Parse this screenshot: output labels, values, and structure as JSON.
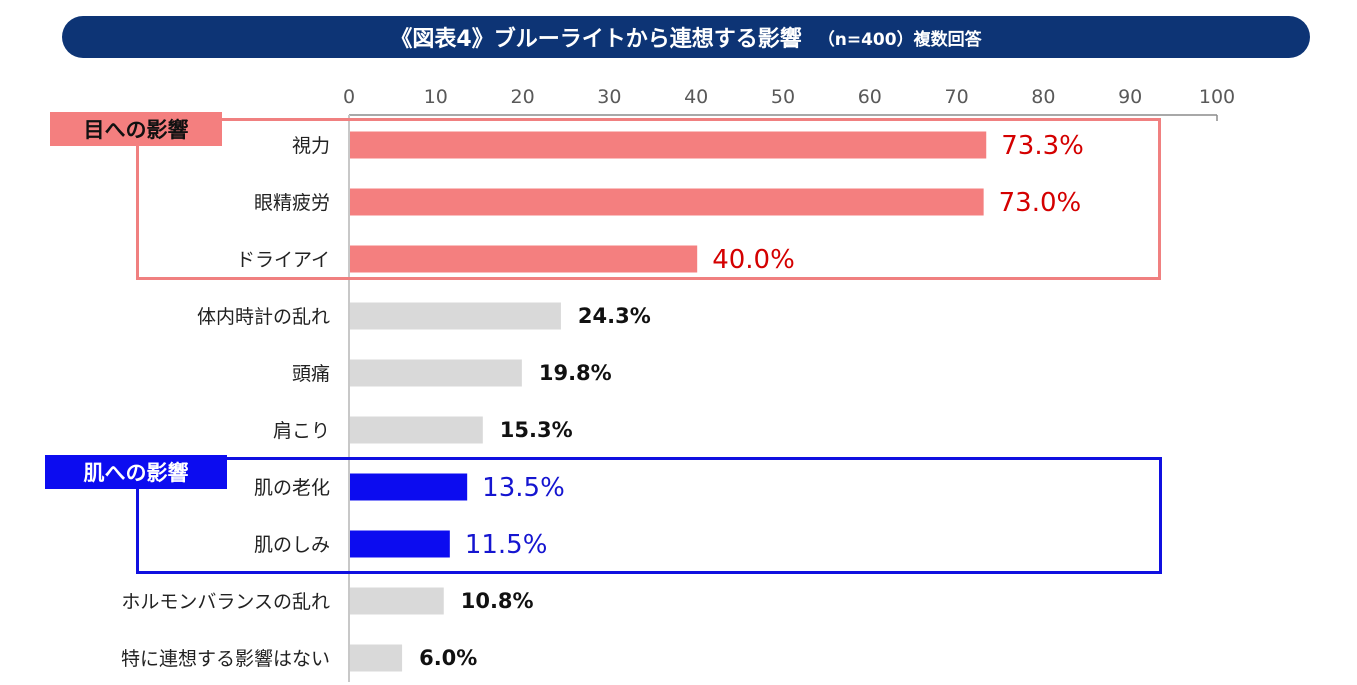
{
  "header": {
    "title": "《図表4》ブルーライトから連想する影響",
    "subtitle": "（n=400）複数回答"
  },
  "groups": {
    "eye_label": "目への影響",
    "skin_label": "肌への影響"
  },
  "colors": {
    "title_bg": "#0d3475",
    "eye": "#f47f7f",
    "eye_value_text": "#d40000",
    "skin": "#0c0cf0",
    "skin_value_text": "#1515d0",
    "other": "#d9d9d9",
    "other_value_text": "#111111"
  },
  "chart_data": {
    "type": "bar",
    "orientation": "horizontal",
    "categories": [
      "視力",
      "眼精疲労",
      "ドライアイ",
      "体内時計の乱れ",
      "頭痛",
      "肩こり",
      "肌の老化",
      "肌のしみ",
      "ホルモンバランスの乱れ",
      "特に連想する影響はない"
    ],
    "values": [
      73.3,
      73.0,
      40.0,
      24.3,
      19.8,
      15.3,
      13.5,
      11.5,
      10.8,
      6.0
    ],
    "value_labels": [
      "73.3%",
      "73.0%",
      "40.0%",
      "24.3%",
      "19.8%",
      "15.3%",
      "13.5%",
      "11.5%",
      "10.8%",
      "6.0%"
    ],
    "groups": [
      "eye",
      "eye",
      "eye",
      "other",
      "other",
      "other",
      "skin",
      "skin",
      "other",
      "other"
    ],
    "xticks": [
      "0",
      "10",
      "20",
      "30",
      "40",
      "50",
      "60",
      "70",
      "80",
      "90",
      "100"
    ],
    "xlim": [
      0,
      100
    ],
    "axis_position": "top",
    "grid": false
  }
}
